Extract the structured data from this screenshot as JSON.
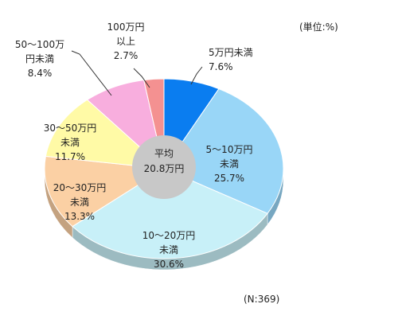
{
  "chart_data": {
    "type": "pie",
    "style": "3d-donut",
    "unit_note": "(単位:%)",
    "n_note": "(N:369)",
    "center_label": [
      "平均",
      "20.8万円"
    ],
    "slices": [
      {
        "category": "5万円未満",
        "label_lines": [
          "5万円未満",
          "7.6%"
        ],
        "value": 7.6,
        "color": "#0a7df0"
      },
      {
        "category": "5～10万円未満",
        "label_lines": [
          "5～10万円",
          "未満",
          "25.7%"
        ],
        "value": 25.7,
        "color": "#99d6f7"
      },
      {
        "category": "10～20万円未満",
        "label_lines": [
          "10～20万円",
          "未満",
          "30.6%"
        ],
        "value": 30.6,
        "color": "#c8f0f8"
      },
      {
        "category": "20～30万円未満",
        "label_lines": [
          "20～30万円",
          "未満",
          "13.3%"
        ],
        "value": 13.3,
        "color": "#fbd0a4"
      },
      {
        "category": "30～50万円未満",
        "label_lines": [
          "30～50万円",
          "未満",
          "11.7%"
        ],
        "value": 11.7,
        "color": "#fffaa6"
      },
      {
        "category": "50～100万円未満",
        "label_lines": [
          "50～100万",
          "円未満",
          "8.4%"
        ],
        "value": 8.4,
        "color": "#f8aede"
      },
      {
        "category": "100万円以上",
        "label_lines": [
          "100万円",
          "以上",
          "2.7%"
        ],
        "value": 2.7,
        "color": "#f49191"
      }
    ]
  }
}
